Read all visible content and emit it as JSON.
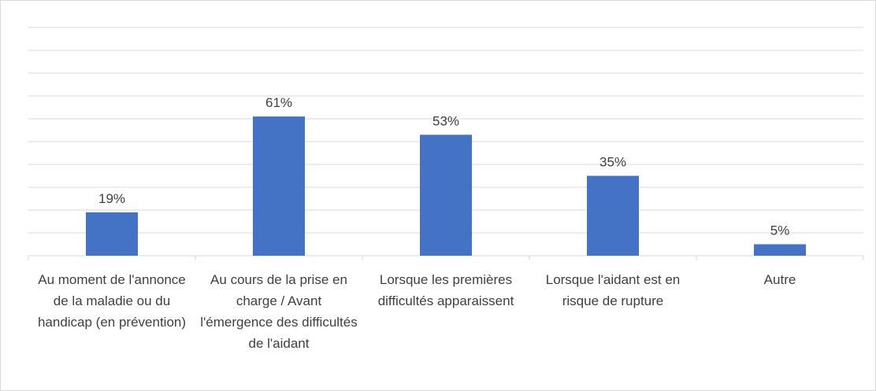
{
  "chart_data": {
    "type": "bar",
    "categories": [
      "Au moment de l'annonce de la maladie ou du handicap (en prévention)",
      "Au cours de la prise en charge / Avant l'émergence des difficultés de l'aidant",
      "Lorsque les premières difficultés apparaissent",
      "Lorsque l'aidant est en risque de rupture",
      "Autre"
    ],
    "values": [
      19,
      61,
      53,
      35,
      5
    ],
    "value_labels": [
      "19%",
      "61%",
      "53%",
      "35%",
      "5%"
    ],
    "color": "#4472c4",
    "ylim": [
      0,
      100
    ],
    "yticks": [
      0,
      10,
      20,
      30,
      40,
      50,
      60,
      70,
      80,
      90,
      100
    ],
    "grid": true
  }
}
